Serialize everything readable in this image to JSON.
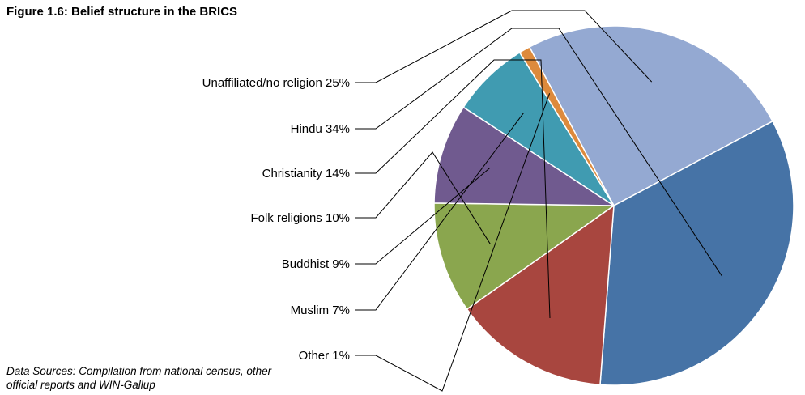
{
  "figure": {
    "title": "Figure 1.6: Belief structure in the BRICS",
    "source": "Data Sources: Compilation from national census, other official reports and WIN-Gallup"
  },
  "chart_data": {
    "type": "pie",
    "title": "Figure 1.6: Belief structure in the BRICS",
    "slices": [
      {
        "name": "Unaffiliated/no religion",
        "value": 25,
        "label": "Unaffiliated/no religion 25%",
        "color": "#94A9D2"
      },
      {
        "name": "Hindu",
        "value": 34,
        "label": "Hindu 34%",
        "color": "#4673A6"
      },
      {
        "name": "Christianity",
        "value": 14,
        "label": "Christianity 14%",
        "color": "#A8463F"
      },
      {
        "name": "Folk religions",
        "value": 10,
        "label": "Folk religions 10%",
        "color": "#8AA64E"
      },
      {
        "name": "Buddhist",
        "value": 9,
        "label": "Buddhist 9%",
        "color": "#705A8F"
      },
      {
        "name": "Muslim",
        "value": 7,
        "label": "Muslim 7%",
        "color": "#409BB1"
      },
      {
        "name": "Other",
        "value": 1,
        "label": "Other 1%",
        "color": "#DD8A3C"
      }
    ],
    "legend": "none",
    "labels": "outside-left-with-leader-lines"
  }
}
